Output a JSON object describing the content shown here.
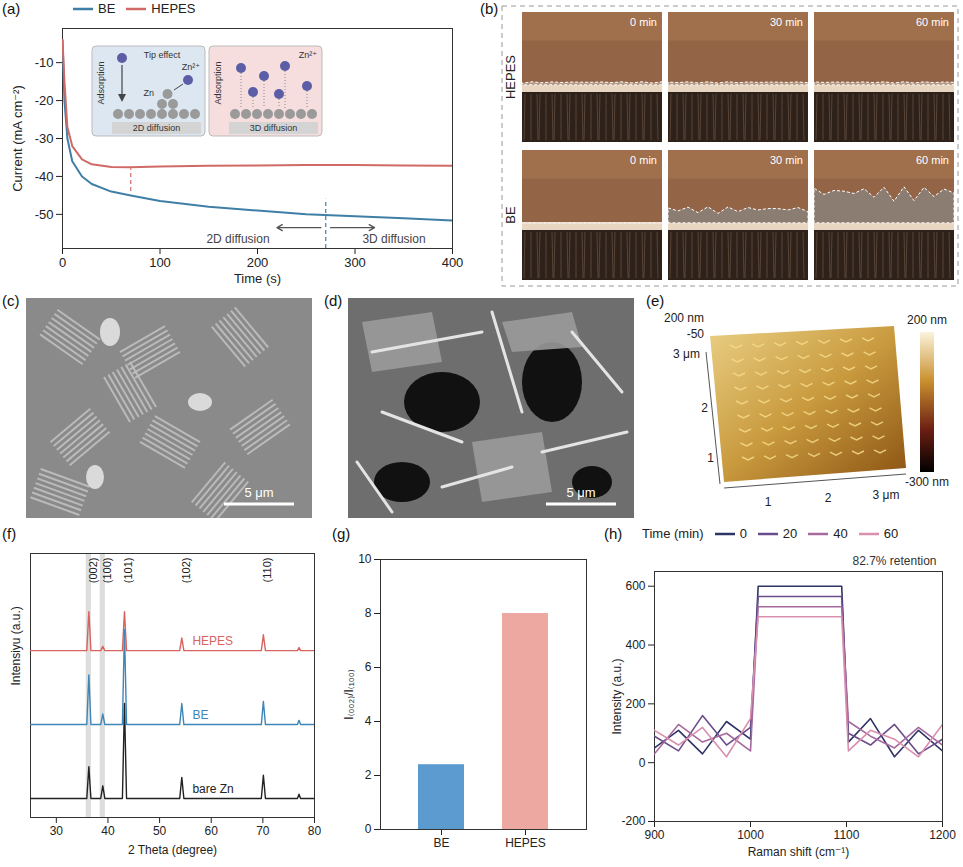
{
  "chart_data": [
    {
      "panel": "(a)",
      "type": "line",
      "x_label": "Time (s)",
      "y_label": "Current (mA cm⁻²)",
      "x": [
        0,
        2,
        5,
        10,
        20,
        30,
        50,
        70,
        100,
        150,
        200,
        250,
        300,
        350,
        400
      ],
      "series": [
        {
          "name": "BE",
          "color": "#3f7fa6",
          "values": [
            -4,
            -20,
            -30,
            -36,
            -40,
            -42,
            -44,
            -45,
            -46.5,
            -48,
            -49,
            -50,
            -50.5,
            -51,
            -51.6
          ]
        },
        {
          "name": "HEPES",
          "color": "#d06a66",
          "values": [
            -4,
            -15,
            -27,
            -32,
            -35.5,
            -36.8,
            -37.5,
            -37.6,
            -37.4,
            -37.2,
            -37.1,
            -37,
            -37,
            -37.1,
            -37.2
          ]
        }
      ],
      "xlim": [
        0,
        400
      ],
      "xticks": [
        0,
        100,
        200,
        300,
        400
      ],
      "ylim": [
        -59,
        -1
      ],
      "yticks": [
        -50,
        -40,
        -30,
        -20,
        -10
      ],
      "legend": "top",
      "vlines": [
        {
          "x": 270,
          "y1": -59,
          "y2": -46,
          "series": "BE"
        },
        {
          "x": 70,
          "y1": -44,
          "y2": -38,
          "series": "HEPES"
        }
      ],
      "annotations": [
        {
          "text": "2D diffusion",
          "x": 180,
          "y": -56.5,
          "arrow": "left"
        },
        {
          "text": "3D diffusion",
          "x": 340,
          "y": -56.5,
          "arrow": "right"
        }
      ],
      "inset": {
        "left": {
          "title": "2D diffusion",
          "adsorption": "Adsorption",
          "tip": "Tip effect",
          "ion": "Zn²⁺",
          "metal": "Zn"
        },
        "right": {
          "title": "3D diffusion",
          "adsorption": "Adsorption",
          "ion": "Zn²⁺"
        }
      }
    },
    {
      "panel": "(f)",
      "type": "line",
      "x_label": "2 Theta (degree)",
      "y_label": "Intensiyu (a.u.)",
      "x": [
        25,
        35.9,
        36.3,
        36.7,
        38.6,
        39.0,
        39.4,
        42.8,
        43.2,
        43.6,
        53.9,
        54.3,
        54.7,
        69.7,
        70.1,
        70.5,
        76.7,
        77.0,
        77.3,
        80
      ],
      "series": [
        {
          "name": "HEPES",
          "color": "#d9645f",
          "values": [
            148,
            148,
            185,
            148,
            148,
            152,
            148,
            148,
            185,
            148,
            148,
            160,
            148,
            148,
            163,
            148,
            148,
            151,
            148,
            148
          ]
        },
        {
          "name": "BE",
          "color": "#3f86b8",
          "values": [
            78,
            78,
            125,
            78,
            78,
            88,
            78,
            78,
            168,
            78,
            78,
            98,
            78,
            78,
            100,
            78,
            78,
            82,
            78,
            78
          ]
        },
        {
          "name": "bare Zn",
          "color": "#222222",
          "values": [
            8,
            8,
            38,
            8,
            8,
            20,
            8,
            8,
            98,
            8,
            8,
            28,
            8,
            8,
            30,
            8,
            8,
            12,
            8,
            8
          ]
        }
      ],
      "xlim": [
        25,
        80
      ],
      "xticks": [
        30,
        40,
        50,
        60,
        70,
        80
      ],
      "ylim": [
        -10,
        240
      ],
      "yticks": [],
      "tick_labels": "x",
      "peak_labels": [
        {
          "x": 36.3,
          "label": "(002)"
        },
        {
          "x": 39.0,
          "label": "(100)"
        },
        {
          "x": 43.2,
          "label": "(101)"
        },
        {
          "x": 54.3,
          "label": "(102)"
        },
        {
          "x": 70.1,
          "label": "(110)"
        }
      ],
      "bands": [
        [
          35.8,
          36.8
        ],
        [
          38.5,
          39.5
        ]
      ]
    },
    {
      "panel": "(g)",
      "type": "bar",
      "categories": [
        "BE",
        "HEPES"
      ],
      "values": [
        2.4,
        8
      ],
      "colors": [
        "#5b9bd0",
        "#eda8a2"
      ],
      "y_label": "I₍₀₀₂₎/I₍₁₀₀₎",
      "ylim": [
        0,
        10
      ],
      "yticks": [
        0,
        2,
        4,
        6,
        8,
        10
      ]
    },
    {
      "panel": "(h)",
      "type": "line",
      "x_label": "Raman shift (cm⁻¹)",
      "y_label": "Intensity (a.u.)",
      "legend_title": "Time (min)",
      "legend": "top",
      "x": [
        900,
        925,
        950,
        975,
        1000,
        1008,
        1050,
        1095,
        1102,
        1125,
        1150,
        1175,
        1200
      ],
      "series": [
        {
          "name": "0",
          "color": "#2f3466",
          "values": [
            50,
            110,
            30,
            140,
            80,
            600,
            600,
            600,
            70,
            150,
            20,
            110,
            40
          ]
        },
        {
          "name": "20",
          "color": "#6a4c8c",
          "values": [
            90,
            40,
            160,
            60,
            120,
            565,
            565,
            565,
            100,
            60,
            130,
            30,
            80
          ]
        },
        {
          "name": "40",
          "color": "#a66a9e",
          "values": [
            30,
            130,
            70,
            100,
            40,
            530,
            530,
            530,
            140,
            90,
            50,
            120,
            60
          ]
        },
        {
          "name": "60",
          "color": "#d98fae",
          "values": [
            110,
            60,
            120,
            20,
            150,
            496,
            496,
            496,
            40,
            110,
            80,
            20,
            130
          ]
        }
      ],
      "xlim": [
        900,
        1200
      ],
      "xticks": [
        900,
        1000,
        1100,
        1200
      ],
      "ylim": [
        -200,
        650
      ],
      "yticks": [
        -200,
        0,
        200,
        400,
        600
      ],
      "annotations": [
        {
          "text": "82.7% retention",
          "x": 1150,
          "y": 650
        }
      ]
    }
  ],
  "image_panels": [
    {
      "panel": "(b)",
      "rows": [
        "HEPES",
        "BE"
      ],
      "times": [
        "0 min",
        "30 min",
        "60 min"
      ]
    },
    {
      "panel": "(c)",
      "scale_bar": "5 μm"
    },
    {
      "panel": "(d)",
      "scale_bar": "5 μm"
    },
    {
      "panel": "(e)",
      "z_labels": [
        "200 nm",
        "-50"
      ],
      "y_labels": [
        "3 μm",
        "2",
        "1"
      ],
      "x_labels": [
        "1",
        "2",
        "3 μm"
      ],
      "colorbar": {
        "labels": [
          "200 nm",
          "-300 nm"
        ]
      }
    }
  ]
}
